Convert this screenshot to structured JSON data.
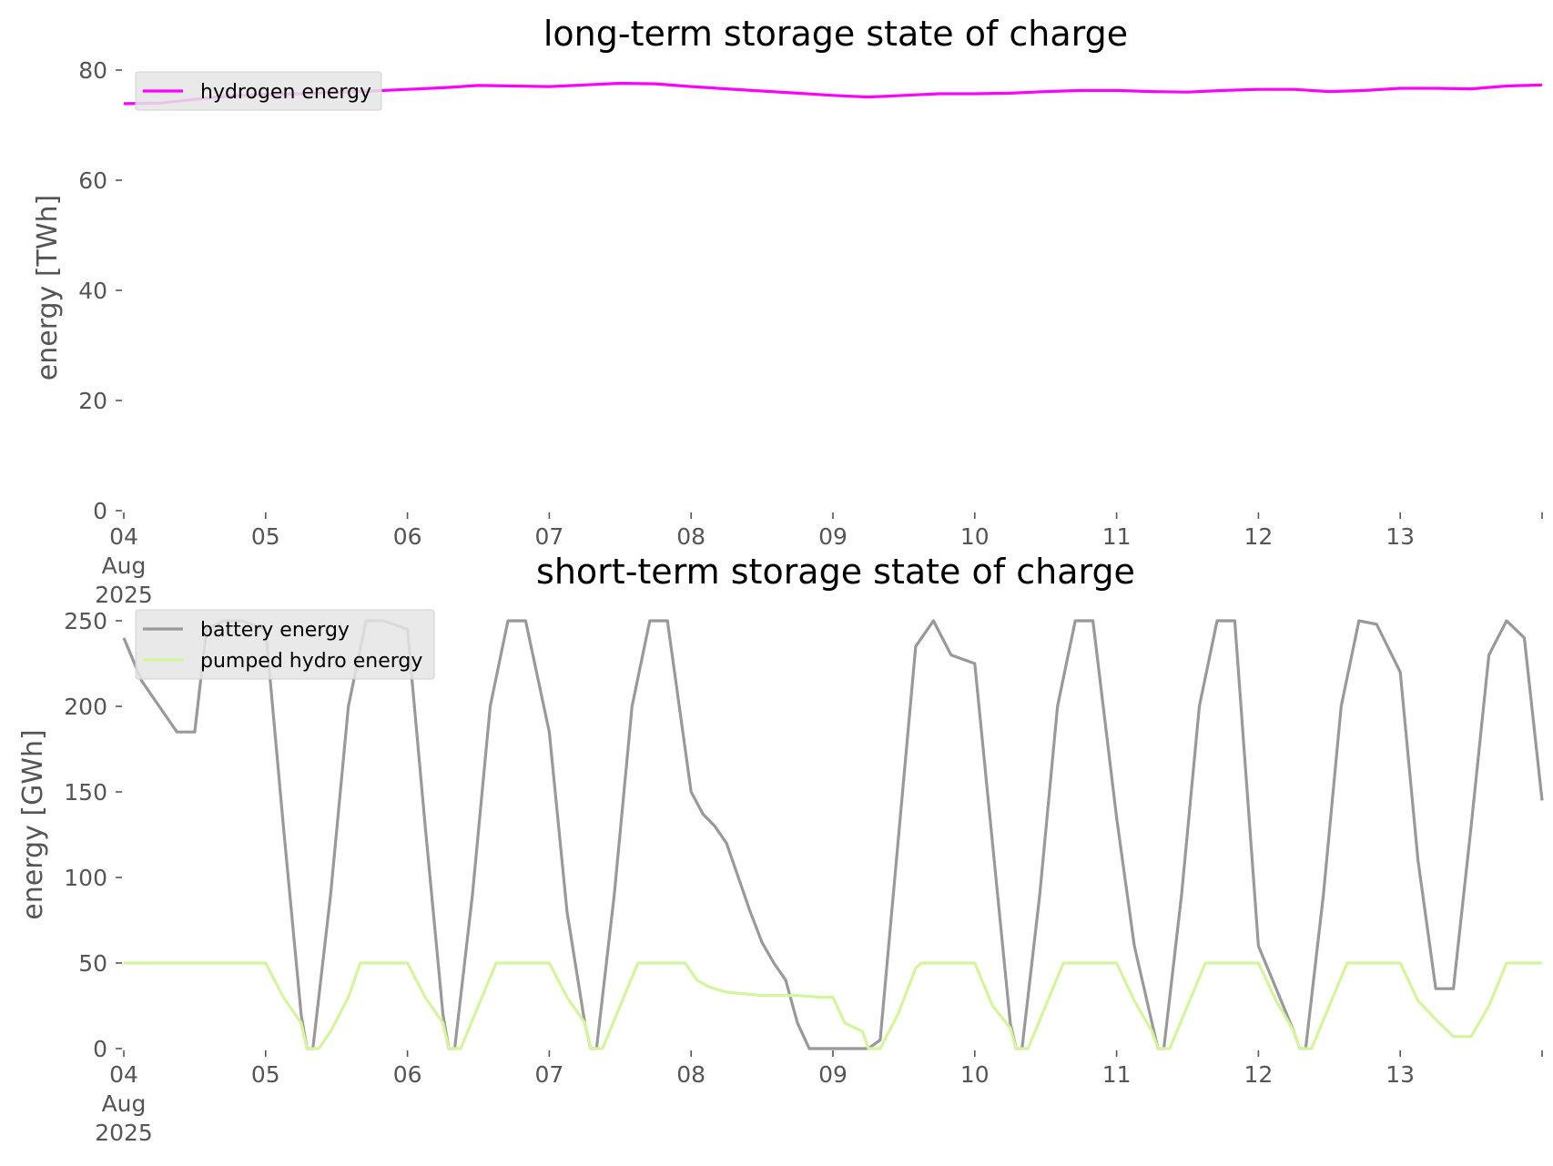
{
  "chart_data": [
    {
      "type": "line",
      "title": "long-term storage state of charge",
      "xlabel": "",
      "ylabel": "energy [TWh]",
      "x_ticks": [
        "04\nAug\n2025",
        "05",
        "06",
        "07",
        "08",
        "09",
        "10",
        "11",
        "12",
        "13"
      ],
      "y_ticks": [
        "0",
        "20",
        "40",
        "60",
        "80"
      ],
      "xlim": [
        "2025-08-04",
        "2025-08-14"
      ],
      "ylim": [
        0,
        80
      ],
      "grid": false,
      "legend_position": "top-left",
      "series": [
        {
          "name": "hydrogen energy",
          "color": "#ff00ff",
          "x": [
            "2025-08-04T00:00",
            "2025-08-04T06:00",
            "2025-08-04T12:00",
            "2025-08-04T18:00",
            "2025-08-05T00:00",
            "2025-08-05T06:00",
            "2025-08-05T12:00",
            "2025-08-05T18:00",
            "2025-08-06T00:00",
            "2025-08-06T06:00",
            "2025-08-06T12:00",
            "2025-08-06T18:00",
            "2025-08-07T00:00",
            "2025-08-07T06:00",
            "2025-08-07T12:00",
            "2025-08-07T18:00",
            "2025-08-08T00:00",
            "2025-08-08T06:00",
            "2025-08-08T12:00",
            "2025-08-08T18:00",
            "2025-08-09T00:00",
            "2025-08-09T06:00",
            "2025-08-09T12:00",
            "2025-08-09T18:00",
            "2025-08-10T00:00",
            "2025-08-10T06:00",
            "2025-08-10T12:00",
            "2025-08-10T18:00",
            "2025-08-11T00:00",
            "2025-08-11T06:00",
            "2025-08-11T12:00",
            "2025-08-11T18:00",
            "2025-08-12T00:00",
            "2025-08-12T06:00",
            "2025-08-12T12:00",
            "2025-08-12T18:00",
            "2025-08-13T00:00",
            "2025-08-13T06:00",
            "2025-08-13T12:00",
            "2025-08-13T18:00",
            "2025-08-14T00:00"
          ],
          "values": [
            73.9,
            74.0,
            74.7,
            75.3,
            75.6,
            75.7,
            76.0,
            76.2,
            76.5,
            76.8,
            77.2,
            77.1,
            77.0,
            77.3,
            77.6,
            77.5,
            77.0,
            76.6,
            76.2,
            75.8,
            75.4,
            75.1,
            75.4,
            75.7,
            75.7,
            75.8,
            76.1,
            76.3,
            76.3,
            76.1,
            76.0,
            76.3,
            76.5,
            76.5,
            76.1,
            76.3,
            76.7,
            76.7,
            76.6,
            77.1,
            77.3
          ]
        }
      ]
    },
    {
      "type": "line",
      "title": "short-term storage state of charge",
      "xlabel": "",
      "ylabel": "energy [GWh]",
      "x_ticks": [
        "04\nAug\n2025",
        "05",
        "06",
        "07",
        "08",
        "09",
        "10",
        "11",
        "12",
        "13"
      ],
      "y_ticks": [
        "0",
        "50",
        "100",
        "150",
        "200",
        "250"
      ],
      "xlim": [
        "2025-08-04",
        "2025-08-14"
      ],
      "ylim": [
        0,
        250
      ],
      "grid": false,
      "legend_position": "top-left",
      "series": [
        {
          "name": "battery energy",
          "color": "#999999",
          "x": [
            "2025-08-04T00:00",
            "2025-08-04T03:00",
            "2025-08-04T06:00",
            "2025-08-04T09:00",
            "2025-08-04T12:00",
            "2025-08-04T14:00",
            "2025-08-04T17:00",
            "2025-08-04T20:00",
            "2025-08-05T00:00",
            "2025-08-05T03:00",
            "2025-08-05T06:00",
            "2025-08-05T07:00",
            "2025-08-05T08:00",
            "2025-08-05T11:00",
            "2025-08-05T14:00",
            "2025-08-05T17:00",
            "2025-08-05T20:00",
            "2025-08-06T00:00",
            "2025-08-06T03:00",
            "2025-08-06T06:00",
            "2025-08-06T07:00",
            "2025-08-06T08:00",
            "2025-08-06T11:00",
            "2025-08-06T14:00",
            "2025-08-06T17:00",
            "2025-08-06T20:00",
            "2025-08-07T00:00",
            "2025-08-07T03:00",
            "2025-08-07T06:00",
            "2025-08-07T07:00",
            "2025-08-07T08:00",
            "2025-08-07T11:00",
            "2025-08-07T14:00",
            "2025-08-07T17:00",
            "2025-08-07T20:00",
            "2025-08-07T22:00",
            "2025-08-08T00:00",
            "2025-08-08T02:00",
            "2025-08-08T04:00",
            "2025-08-08T06:00",
            "2025-08-08T08:00",
            "2025-08-08T10:00",
            "2025-08-08T12:00",
            "2025-08-08T14:00",
            "2025-08-08T16:00",
            "2025-08-08T18:00",
            "2025-08-08T20:00",
            "2025-08-08T22:00",
            "2025-08-09T00:00",
            "2025-08-09T03:00",
            "2025-08-09T06:00",
            "2025-08-09T08:00",
            "2025-08-09T11:00",
            "2025-08-09T14:00",
            "2025-08-09T17:00",
            "2025-08-09T20:00",
            "2025-08-10T00:00",
            "2025-08-10T03:00",
            "2025-08-10T06:00",
            "2025-08-10T07:00",
            "2025-08-10T08:00",
            "2025-08-10T11:00",
            "2025-08-10T14:00",
            "2025-08-10T17:00",
            "2025-08-10T20:00",
            "2025-08-11T00:00",
            "2025-08-11T03:00",
            "2025-08-11T06:00",
            "2025-08-11T07:00",
            "2025-08-11T08:00",
            "2025-08-11T11:00",
            "2025-08-11T14:00",
            "2025-08-11T17:00",
            "2025-08-11T20:00",
            "2025-08-12T00:00",
            "2025-08-12T03:00",
            "2025-08-12T06:00",
            "2025-08-12T07:00",
            "2025-08-12T08:00",
            "2025-08-12T11:00",
            "2025-08-12T14:00",
            "2025-08-12T17:00",
            "2025-08-12T20:00",
            "2025-08-13T00:00",
            "2025-08-13T03:00",
            "2025-08-13T06:00",
            "2025-08-13T09:00",
            "2025-08-13T12:00",
            "2025-08-13T15:00",
            "2025-08-13T18:00",
            "2025-08-13T21:00",
            "2025-08-14T00:00"
          ],
          "values": [
            240,
            215,
            200,
            185,
            185,
            245,
            250,
            250,
            245,
            130,
            20,
            0,
            0,
            90,
            200,
            250,
            250,
            245,
            130,
            20,
            0,
            0,
            90,
            200,
            250,
            250,
            185,
            80,
            15,
            0,
            0,
            90,
            200,
            250,
            250,
            200,
            150,
            137,
            130,
            120,
            100,
            80,
            62,
            50,
            40,
            15,
            0,
            0,
            0,
            0,
            0,
            5,
            120,
            235,
            250,
            230,
            225,
            120,
            15,
            0,
            0,
            90,
            200,
            250,
            250,
            135,
            60,
            15,
            0,
            0,
            90,
            200,
            250,
            250,
            60,
            35,
            10,
            0,
            0,
            90,
            200,
            250,
            248,
            220,
            110,
            35,
            35,
            130,
            230,
            250,
            240,
            145
          ]
        },
        {
          "name": "pumped hydro energy",
          "color": "#d4f59b",
          "x": [
            "2025-08-04T00:00",
            "2025-08-05T00:00",
            "2025-08-05T03:00",
            "2025-08-05T06:00",
            "2025-08-05T07:00",
            "2025-08-05T09:00",
            "2025-08-05T11:00",
            "2025-08-05T14:00",
            "2025-08-05T16:00",
            "2025-08-06T00:00",
            "2025-08-06T03:00",
            "2025-08-06T06:00",
            "2025-08-06T07:00",
            "2025-08-06T09:00",
            "2025-08-06T12:00",
            "2025-08-06T15:00",
            "2025-08-07T00:00",
            "2025-08-07T03:00",
            "2025-08-07T06:00",
            "2025-08-07T07:00",
            "2025-08-07T09:00",
            "2025-08-07T12:00",
            "2025-08-07T15:00",
            "2025-08-07T23:00",
            "2025-08-08T01:00",
            "2025-08-08T03:00",
            "2025-08-08T06:00",
            "2025-08-08T12:00",
            "2025-08-08T18:00",
            "2025-08-08T22:00",
            "2025-08-09T00:00",
            "2025-08-09T02:00",
            "2025-08-09T05:00",
            "2025-08-09T06:00",
            "2025-08-09T08:00",
            "2025-08-09T11:00",
            "2025-08-09T14:00",
            "2025-08-09T15:00",
            "2025-08-10T00:00",
            "2025-08-10T03:00",
            "2025-08-10T06:00",
            "2025-08-10T07:00",
            "2025-08-10T09:00",
            "2025-08-10T12:00",
            "2025-08-10T15:00",
            "2025-08-11T00:00",
            "2025-08-11T03:00",
            "2025-08-11T06:00",
            "2025-08-11T07:00",
            "2025-08-11T09:00",
            "2025-08-11T12:00",
            "2025-08-11T15:00",
            "2025-08-12T00:00",
            "2025-08-12T03:00",
            "2025-08-12T06:00",
            "2025-08-12T07:00",
            "2025-08-12T09:00",
            "2025-08-12T12:00",
            "2025-08-12T15:00",
            "2025-08-13T00:00",
            "2025-08-13T03:00",
            "2025-08-13T06:00",
            "2025-08-13T09:00",
            "2025-08-13T12:00",
            "2025-08-13T15:00",
            "2025-08-13T18:00",
            "2025-08-14T00:00"
          ],
          "values": [
            50,
            50,
            30,
            15,
            0,
            0,
            10,
            30,
            50,
            50,
            30,
            15,
            0,
            0,
            25,
            50,
            50,
            30,
            15,
            0,
            0,
            25,
            50,
            50,
            40,
            36,
            33,
            31,
            31,
            30,
            30,
            15,
            10,
            0,
            0,
            20,
            47,
            50,
            50,
            25,
            12,
            0,
            0,
            25,
            50,
            50,
            28,
            10,
            0,
            0,
            25,
            50,
            50,
            28,
            10,
            0,
            0,
            25,
            50,
            50,
            28,
            17,
            7,
            7,
            25,
            50,
            50
          ]
        }
      ]
    }
  ]
}
